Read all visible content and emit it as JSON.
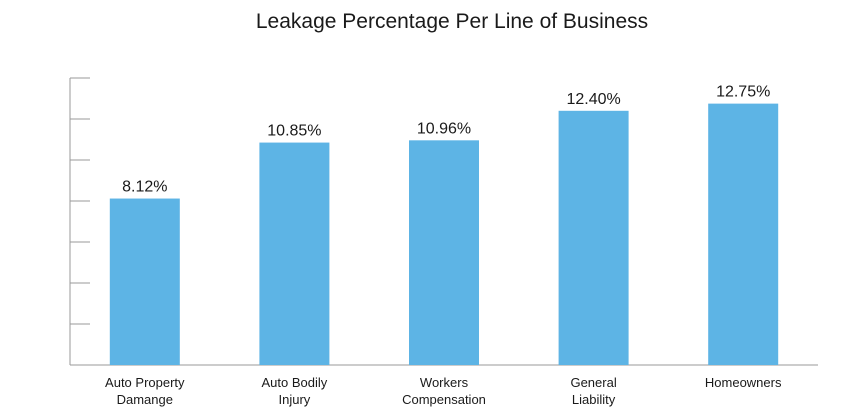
{
  "chart_data": {
    "type": "bar",
    "title": "Leakage Percentage Per Line of Business",
    "xlabel": "",
    "ylabel": "",
    "categories": [
      [
        "Auto Property",
        "Damange"
      ],
      [
        "Auto Bodily",
        "Injury"
      ],
      [
        "Workers",
        "Compensation"
      ],
      [
        "General",
        "Liability"
      ],
      [
        "Homeowners"
      ]
    ],
    "values": [
      8.12,
      10.85,
      10.96,
      12.4,
      12.75
    ],
    "value_labels": [
      "8.12%",
      "10.85%",
      "10.96%",
      "12.40%",
      "12.75%"
    ],
    "ylim": [
      0,
      14
    ],
    "y_ticks_count": 7,
    "grid": false,
    "bar_color": "#5db4e5",
    "legend": "none"
  }
}
